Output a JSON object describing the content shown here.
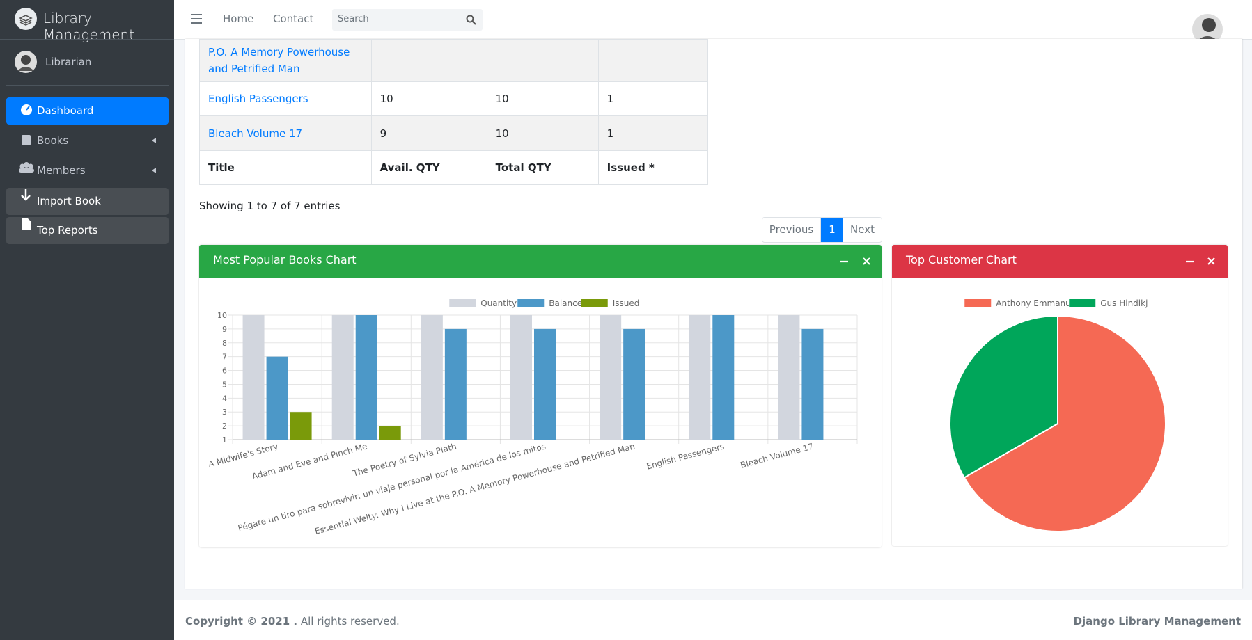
{
  "brand": "Library Management",
  "user": "Librarian",
  "sidebar": [
    "Dashboard",
    "Books",
    "Members",
    "Import Book",
    "Top Reports"
  ],
  "topnav": [
    "Home",
    "Contact"
  ],
  "search_placeholder": "Search",
  "table": {
    "rows": [
      [
        "P.O. A Memory Powerhouse and Petrified Man"
      ],
      [
        "English Passengers",
        10,
        10,
        1
      ],
      [
        "Bleach Volume 17",
        9,
        10,
        1
      ]
    ],
    "footer": [
      "Title",
      "Avail. QTY",
      "Total QTY",
      "Issued *"
    ]
  },
  "info": "Showing 1 to 7 of 7 entries",
  "pagination": [
    "Previous",
    "1",
    "Next"
  ],
  "chart_data": [
    {
      "type": "bar",
      "title": "Most Popular Books Chart",
      "header_color": "#28a745",
      "categories": [
        "A Midwife's Story",
        "Adam and Eve and Pinch Me",
        "The Poetry of Sylvia Plath",
        "Pégate un tiro para sobrevivir: un viaje personal por la América de los mitos",
        "Essential Welty: Why I Live at the P.O.  A Memory  Powerhouse and Petrified Man",
        "English Passengers",
        "Bleach  Volume 17"
      ],
      "series": [
        {
          "name": "Quantity",
          "color": "#d2d6de",
          "values": [
            10,
            10,
            10,
            10,
            10,
            10,
            10
          ]
        },
        {
          "name": "Balance",
          "color": "#4c98c8",
          "values": [
            7,
            10,
            9,
            9,
            9,
            10,
            9
          ]
        },
        {
          "name": "Issued",
          "color": "#7a9a0a",
          "values": [
            3,
            2,
            1,
            1,
            1,
            1,
            1
          ]
        }
      ],
      "ylim": [
        1,
        10
      ],
      "yticks": [
        1,
        2,
        3,
        4,
        5,
        6,
        7,
        8,
        9,
        10
      ],
      "grid": true
    },
    {
      "type": "pie",
      "title": "Top Customer Chart",
      "header_color": "#dc3545",
      "categories": [
        "Anthony Emmanuel",
        "Gus Hindikj"
      ],
      "values": [
        2,
        1
      ],
      "colors": [
        "#f56954",
        "#00a65a"
      ]
    }
  ],
  "footer": {
    "copyright": "Copyright © 2021 .",
    "rights": "All rights reserved.",
    "product": "Django Library Management"
  }
}
